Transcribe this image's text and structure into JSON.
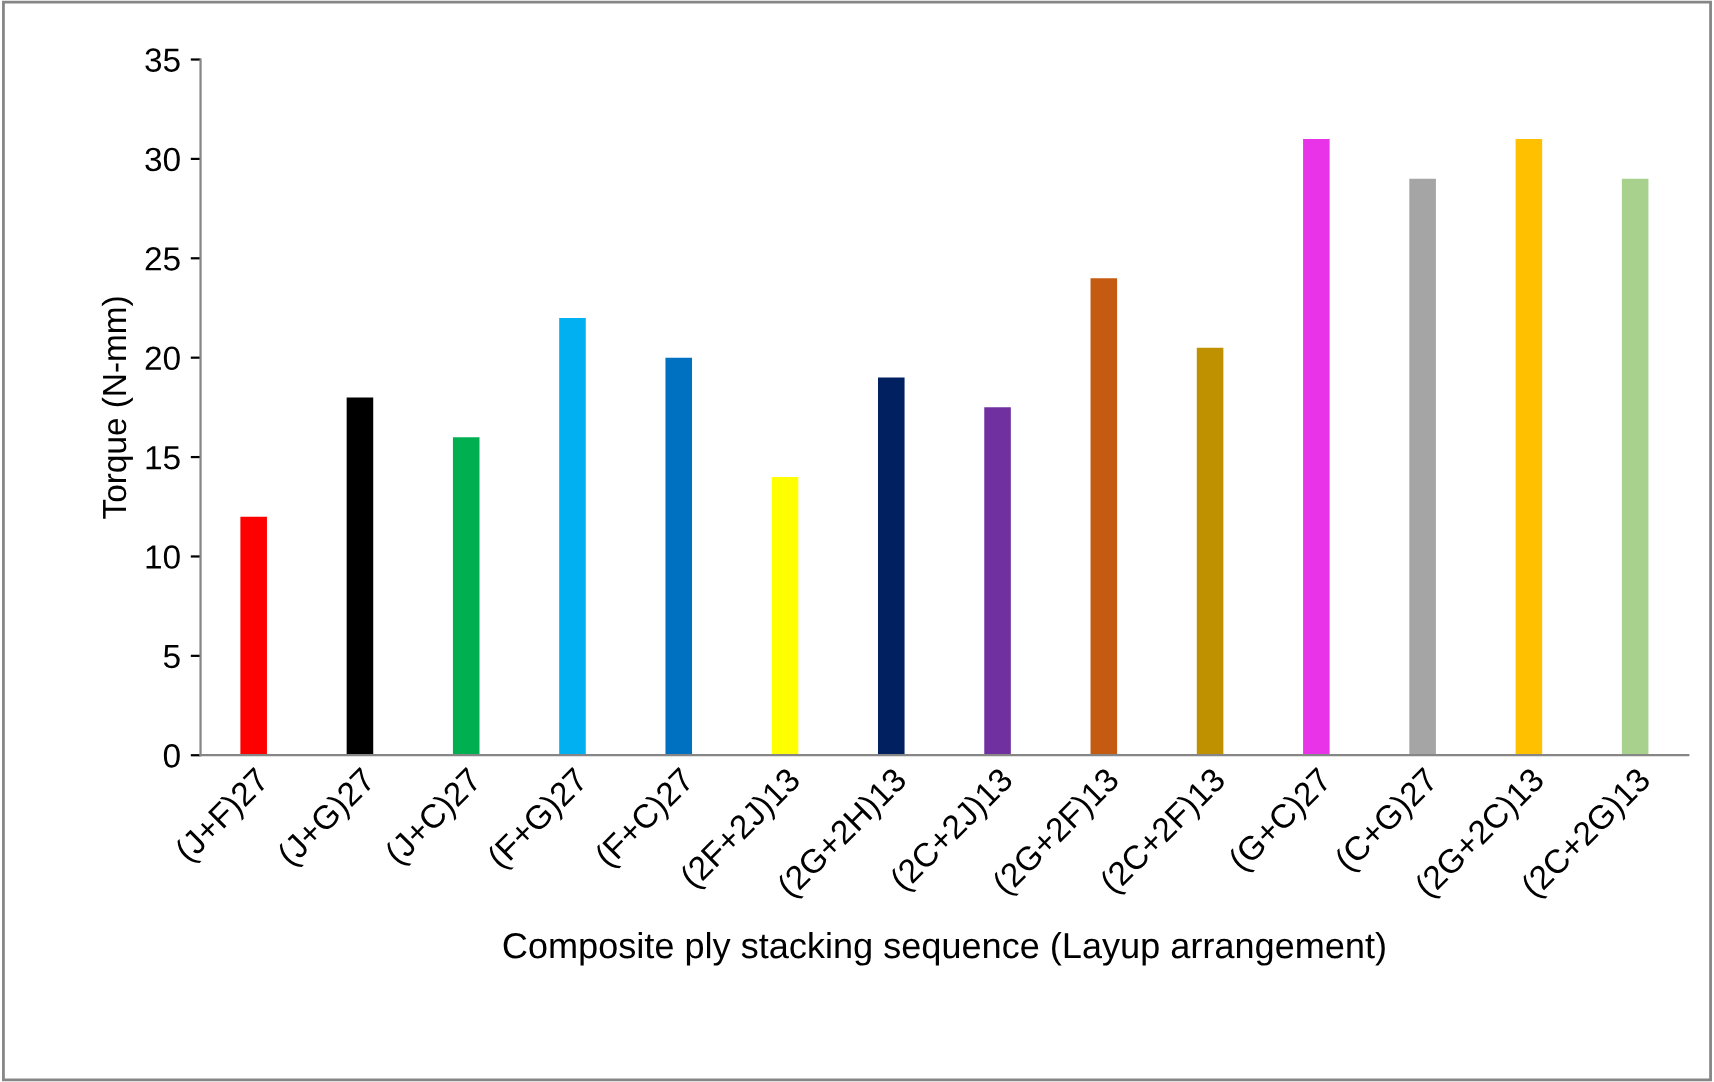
{
  "chart_data": {
    "type": "bar",
    "xlabel": "Composite ply stacking sequence (Layup arrangement)",
    "ylabel": "Torque (N-mm)",
    "categories": [
      "(J+F)27",
      "(J+G)27",
      "(J+C)27",
      "(F+G)27",
      "(F+C)27",
      "(2F+2J)13",
      "(2G+2H)13",
      "(2C+2J)13",
      "(2G+2F)13",
      "(2C+2F)13",
      "(G+C)27",
      "(C+G)27",
      "(2G+2C)13",
      "(2C+2G)13"
    ],
    "values": [
      12,
      18,
      16,
      22,
      20,
      14,
      19,
      17.5,
      24,
      20.5,
      31,
      29,
      31,
      29
    ],
    "colors": [
      "#ff0000",
      "#000000",
      "#00b050",
      "#00b0f0",
      "#0070c0",
      "#ffff00",
      "#002060",
      "#7030a0",
      "#c55a11",
      "#bf9000",
      "#e833e8",
      "#a5a5a5",
      "#ffc000",
      "#a9d18e"
    ],
    "ylim": [
      0,
      35
    ],
    "yticks": [
      0,
      5,
      10,
      15,
      20,
      25,
      30,
      35
    ],
    "grid": false,
    "legend": false
  }
}
